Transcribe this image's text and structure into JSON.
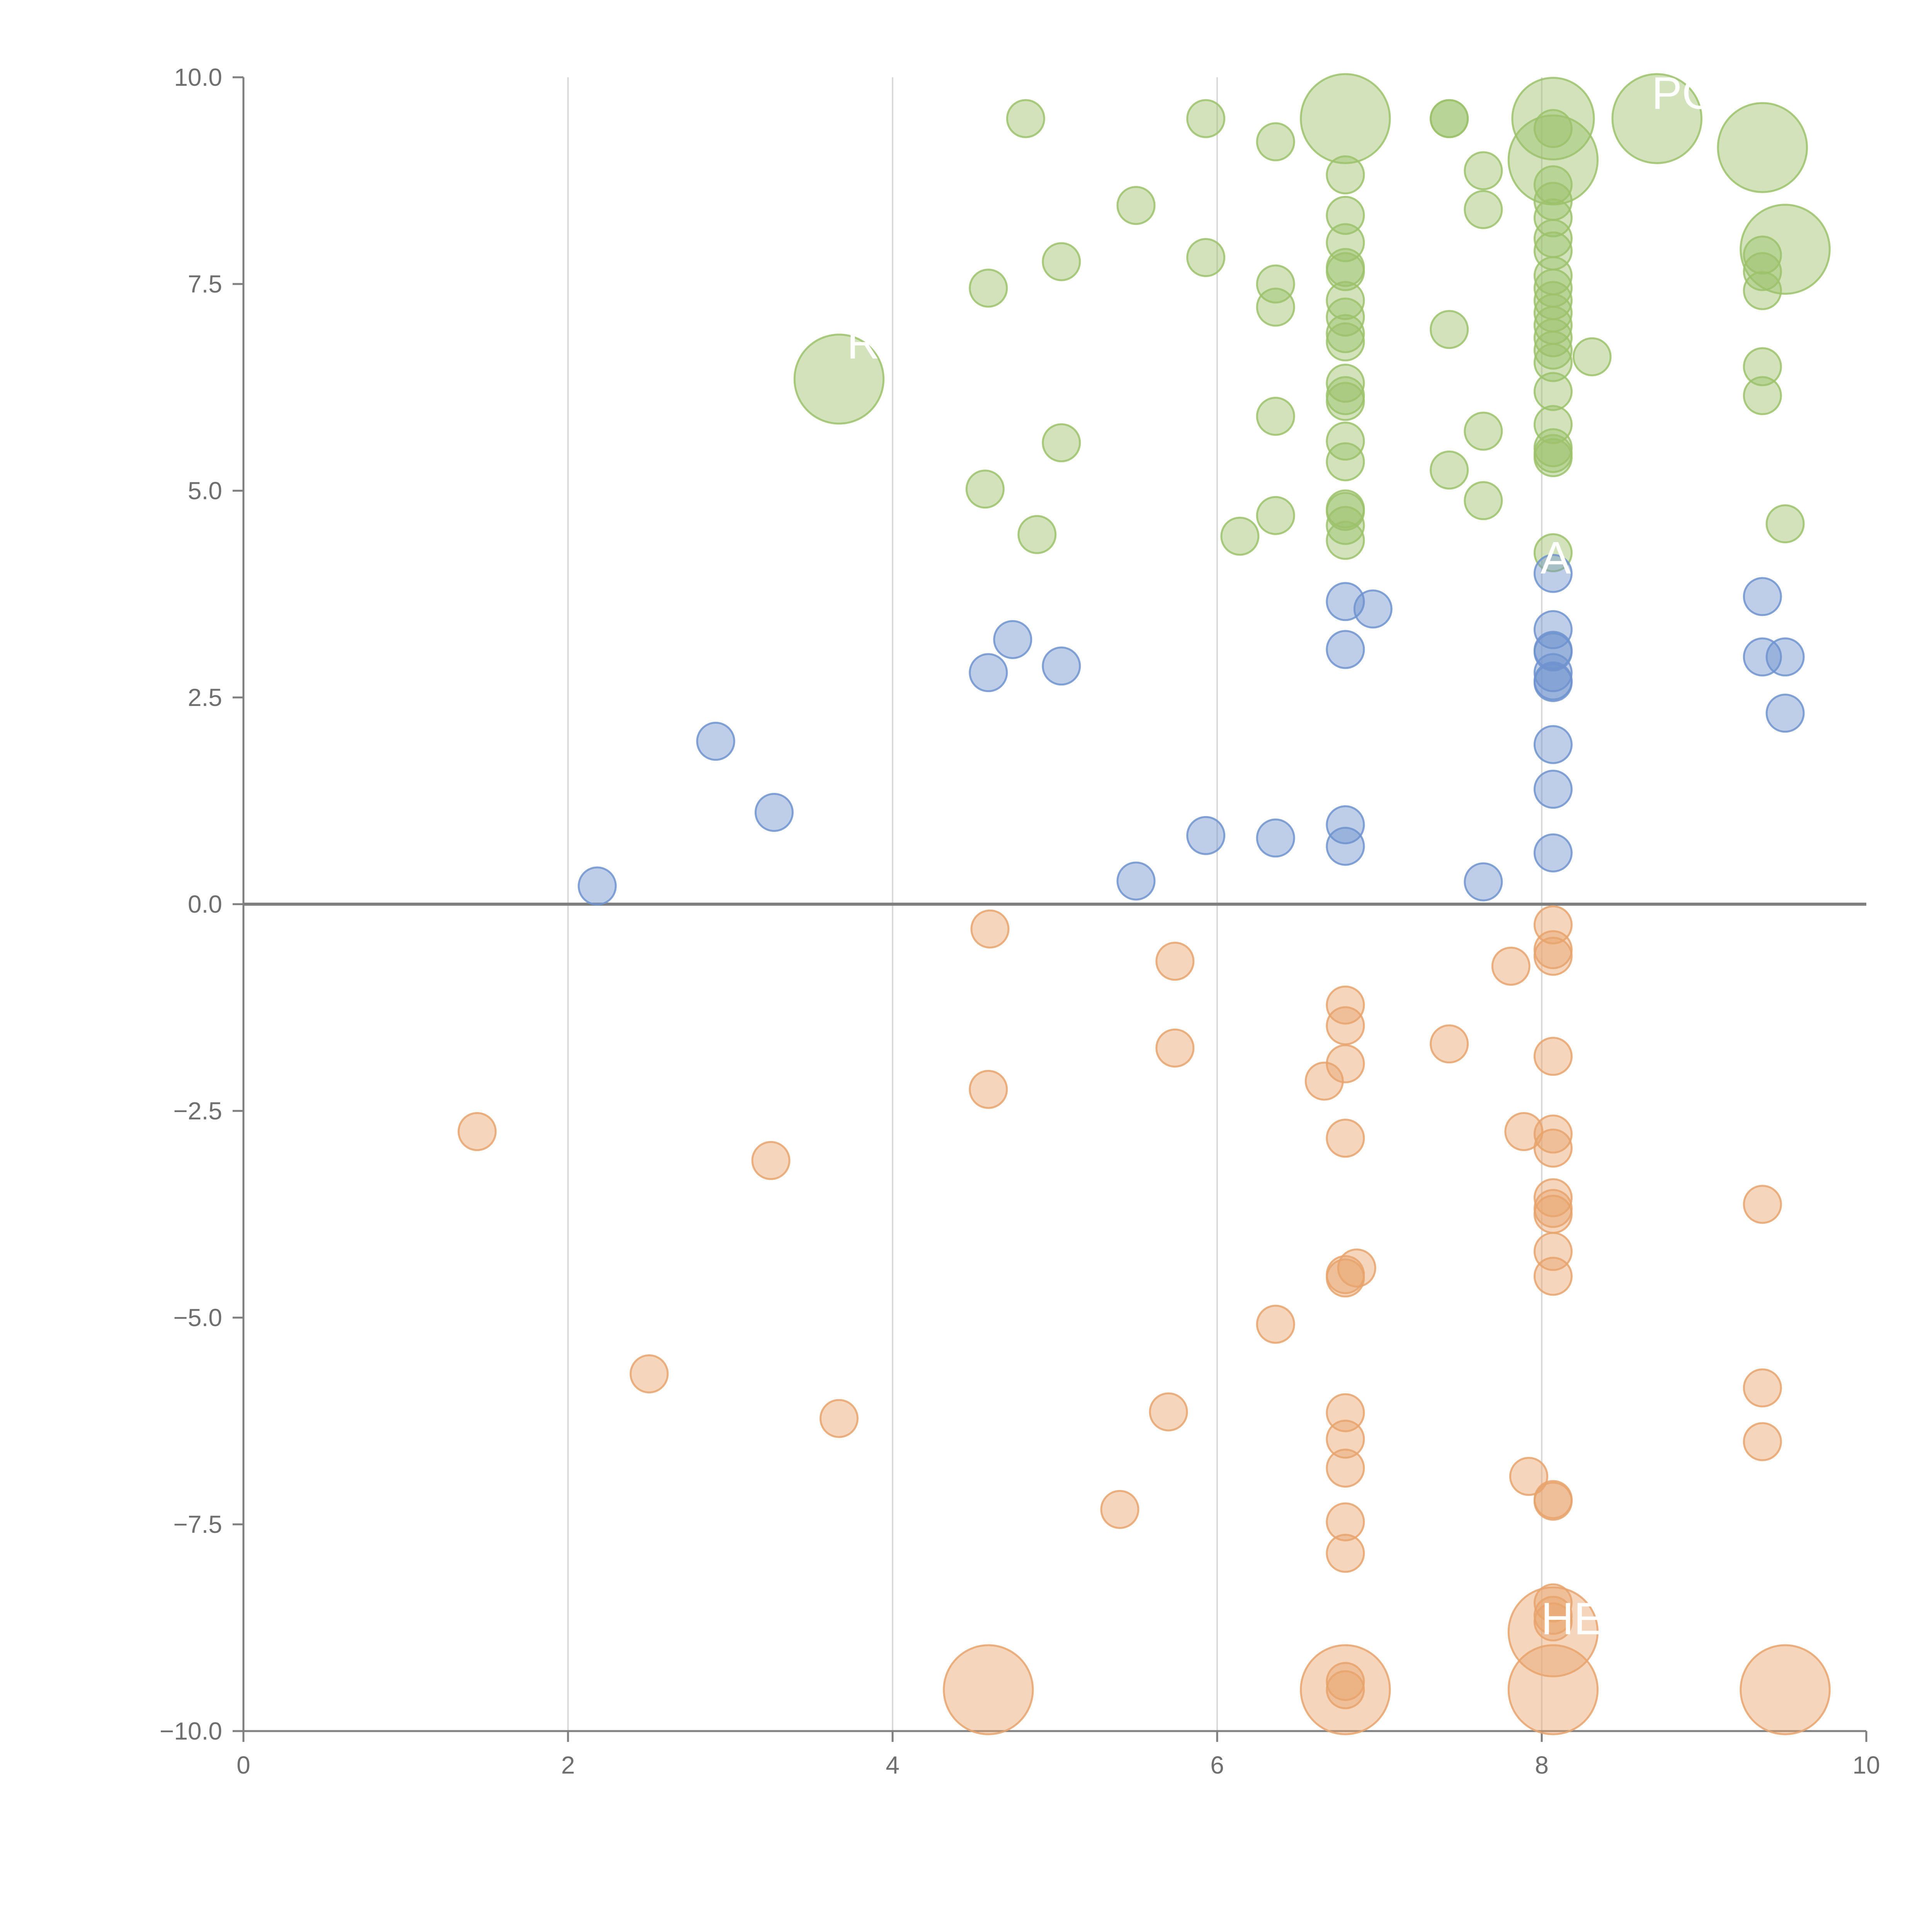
{
  "chart_data": {
    "type": "scatter",
    "title": "",
    "xlabel": "",
    "ylabel": "",
    "xlim": [
      0,
      10
    ],
    "ylim": [
      -10,
      10
    ],
    "x_ticks": [
      "0",
      "2",
      "4",
      "6",
      "8",
      "10"
    ],
    "y_ticks": [
      "10.0",
      "7.5",
      "5.0",
      "2.5",
      "0.0",
      "−2.5",
      "−5.0",
      "−7.5",
      "−10.0"
    ],
    "grid": "vertical lines at x ticks",
    "reference_line_y": 0,
    "colors": {
      "green": "#9cc26b",
      "blue": "#6f93cf",
      "orange": "#e8a36c",
      "axis": "#7f7f7f",
      "grid": "#d9d9d9"
    },
    "series": [
      {
        "color": "green",
        "points": [
          [
            4.82,
            9.5,
            1
          ],
          [
            5.93,
            9.5,
            1
          ],
          [
            6.36,
            9.22,
            1
          ],
          [
            6.79,
            9.5,
            2.4
          ],
          [
            7.43,
            9.5,
            1
          ],
          [
            7.43,
            9.5,
            1
          ],
          [
            8.07,
            9.5,
            2.2
          ],
          [
            8.07,
            9.38,
            1
          ],
          [
            8.71,
            9.5,
            2.4
          ],
          [
            9.36,
            9.15,
            2.4
          ],
          [
            8.07,
            9.0,
            2.4
          ],
          [
            6.79,
            8.82,
            1
          ],
          [
            7.64,
            8.87,
            1
          ],
          [
            8.07,
            8.7,
            1
          ],
          [
            8.07,
            8.5,
            1
          ],
          [
            5.5,
            8.45,
            1
          ],
          [
            7.64,
            8.4,
            1
          ],
          [
            6.79,
            8.33,
            1
          ],
          [
            8.07,
            8.3,
            1
          ],
          [
            8.07,
            8.05,
            1
          ],
          [
            6.79,
            8.0,
            1
          ],
          [
            8.07,
            7.9,
            1
          ],
          [
            9.36,
            7.85,
            1
          ],
          [
            5.93,
            7.82,
            1
          ],
          [
            5.04,
            7.77,
            1
          ],
          [
            9.5,
            7.92,
            2.4
          ],
          [
            6.79,
            7.7,
            1
          ],
          [
            6.79,
            7.65,
            1
          ],
          [
            8.07,
            7.6,
            1
          ],
          [
            9.36,
            7.65,
            1
          ],
          [
            4.59,
            7.45,
            1
          ],
          [
            6.36,
            7.5,
            1
          ],
          [
            9.36,
            7.42,
            1
          ],
          [
            8.07,
            7.45,
            1
          ],
          [
            8.07,
            7.3,
            1
          ],
          [
            6.79,
            7.3,
            1
          ],
          [
            6.36,
            7.22,
            1
          ],
          [
            8.07,
            7.15,
            1
          ],
          [
            6.79,
            7.1,
            1
          ],
          [
            8.07,
            7.0,
            1
          ],
          [
            7.43,
            6.95,
            1
          ],
          [
            6.79,
            6.9,
            1
          ],
          [
            8.07,
            6.85,
            1
          ],
          [
            6.79,
            6.8,
            1
          ],
          [
            8.07,
            6.7,
            1
          ],
          [
            3.67,
            6.35,
            2.4
          ],
          [
            8.07,
            6.55,
            1
          ],
          [
            8.31,
            6.62,
            1
          ],
          [
            9.36,
            6.5,
            1
          ],
          [
            6.79,
            6.3,
            1
          ],
          [
            8.07,
            6.2,
            1
          ],
          [
            9.36,
            6.15,
            1
          ],
          [
            6.79,
            6.15,
            1
          ],
          [
            6.79,
            6.08,
            1
          ],
          [
            6.36,
            5.9,
            1
          ],
          [
            8.07,
            5.8,
            1
          ],
          [
            7.64,
            5.72,
            1
          ],
          [
            6.79,
            5.6,
            1
          ],
          [
            5.04,
            5.58,
            1
          ],
          [
            8.07,
            5.52,
            1
          ],
          [
            8.07,
            5.45,
            1
          ],
          [
            8.07,
            5.4,
            1
          ],
          [
            6.79,
            5.35,
            1
          ],
          [
            7.43,
            5.25,
            1
          ],
          [
            4.57,
            5.02,
            1
          ],
          [
            7.64,
            4.88,
            1
          ],
          [
            6.79,
            4.78,
            1
          ],
          [
            6.79,
            4.75,
            1
          ],
          [
            6.36,
            4.7,
            1
          ],
          [
            9.5,
            4.6,
            1
          ],
          [
            6.79,
            4.58,
            1
          ],
          [
            4.89,
            4.47,
            1
          ],
          [
            6.14,
            4.45,
            1
          ],
          [
            6.79,
            4.4,
            1
          ],
          [
            8.07,
            4.25,
            1
          ]
        ]
      },
      {
        "color": "blue",
        "points": [
          [
            8.07,
            4.0,
            1
          ],
          [
            9.36,
            3.72,
            1
          ],
          [
            6.79,
            3.66,
            1
          ],
          [
            6.96,
            3.57,
            1
          ],
          [
            8.07,
            3.32,
            1
          ],
          [
            4.74,
            3.2,
            1
          ],
          [
            8.07,
            3.07,
            1
          ],
          [
            6.79,
            3.08,
            1
          ],
          [
            8.07,
            3.05,
            1
          ],
          [
            9.36,
            2.99,
            1
          ],
          [
            9.5,
            2.99,
            1
          ],
          [
            5.04,
            2.88,
            1
          ],
          [
            4.59,
            2.8,
            1
          ],
          [
            8.07,
            2.8,
            1
          ],
          [
            8.07,
            2.7,
            1
          ],
          [
            8.07,
            2.68,
            1
          ],
          [
            9.5,
            2.31,
            1
          ],
          [
            2.91,
            1.97,
            1
          ],
          [
            8.07,
            1.93,
            1
          ],
          [
            8.07,
            1.39,
            1
          ],
          [
            3.27,
            1.11,
            1
          ],
          [
            6.79,
            0.96,
            1
          ],
          [
            5.93,
            0.83,
            1
          ],
          [
            6.36,
            0.8,
            1
          ],
          [
            6.79,
            0.7,
            1
          ],
          [
            8.07,
            0.62,
            1
          ],
          [
            5.5,
            0.28,
            1
          ],
          [
            7.64,
            0.27,
            1
          ],
          [
            2.18,
            0.22,
            1
          ]
        ]
      },
      {
        "color": "orange",
        "points": [
          [
            8.07,
            -0.25,
            1
          ],
          [
            4.6,
            -0.3,
            1
          ],
          [
            8.07,
            -0.55,
            1
          ],
          [
            8.07,
            -0.63,
            1
          ],
          [
            5.74,
            -0.69,
            1
          ],
          [
            7.81,
            -0.75,
            1
          ],
          [
            6.79,
            -1.22,
            1
          ],
          [
            6.79,
            -1.47,
            1
          ],
          [
            7.43,
            -1.69,
            1
          ],
          [
            5.74,
            -1.74,
            1
          ],
          [
            8.07,
            -1.84,
            1
          ],
          [
            6.79,
            -1.93,
            1
          ],
          [
            6.66,
            -2.14,
            1
          ],
          [
            4.59,
            -2.24,
            1
          ],
          [
            1.44,
            -2.75,
            1
          ],
          [
            7.89,
            -2.75,
            1
          ],
          [
            8.07,
            -2.78,
            1
          ],
          [
            6.79,
            -2.83,
            1
          ],
          [
            8.07,
            -2.95,
            1
          ],
          [
            3.25,
            -3.1,
            1
          ],
          [
            8.07,
            -3.55,
            1
          ],
          [
            9.36,
            -3.63,
            1
          ],
          [
            8.07,
            -3.68,
            1
          ],
          [
            8.07,
            -3.75,
            1
          ],
          [
            8.07,
            -4.2,
            1
          ],
          [
            6.86,
            -4.4,
            1
          ],
          [
            6.79,
            -4.48,
            1
          ],
          [
            6.79,
            -4.52,
            1
          ],
          [
            8.07,
            -4.5,
            1
          ],
          [
            6.36,
            -5.08,
            1
          ],
          [
            2.5,
            -5.68,
            1
          ],
          [
            9.36,
            -5.85,
            1
          ],
          [
            5.7,
            -6.14,
            1
          ],
          [
            6.79,
            -6.15,
            1
          ],
          [
            3.67,
            -6.22,
            1
          ],
          [
            6.79,
            -6.47,
            1
          ],
          [
            9.36,
            -6.5,
            1
          ],
          [
            6.79,
            -6.82,
            1
          ],
          [
            7.92,
            -6.92,
            1
          ],
          [
            8.07,
            -7.2,
            1
          ],
          [
            8.07,
            -7.22,
            1
          ],
          [
            5.4,
            -7.32,
            1
          ],
          [
            6.79,
            -7.47,
            1
          ],
          [
            6.79,
            -7.85,
            1
          ],
          [
            8.07,
            -8.45,
            1
          ],
          [
            8.07,
            -8.6,
            1
          ],
          [
            8.07,
            -8.68,
            1
          ],
          [
            8.07,
            -8.8,
            2.4
          ],
          [
            6.79,
            -9.4,
            1
          ],
          [
            6.79,
            -9.5,
            1
          ],
          [
            4.59,
            -9.5,
            2.4
          ],
          [
            6.79,
            -9.5,
            2.4
          ],
          [
            8.07,
            -9.5,
            2.4
          ],
          [
            9.5,
            -9.5,
            2.4
          ]
        ]
      }
    ],
    "annotations": [
      {
        "text": "PO",
        "x": 8.88,
        "y": 9.62
      },
      {
        "text": "R",
        "x": 3.82,
        "y": 6.6
      },
      {
        "text": "AS",
        "x": 8.18,
        "y": 4.0
      },
      {
        "text": "HE",
        "x": 8.19,
        "y": -8.83
      }
    ]
  }
}
